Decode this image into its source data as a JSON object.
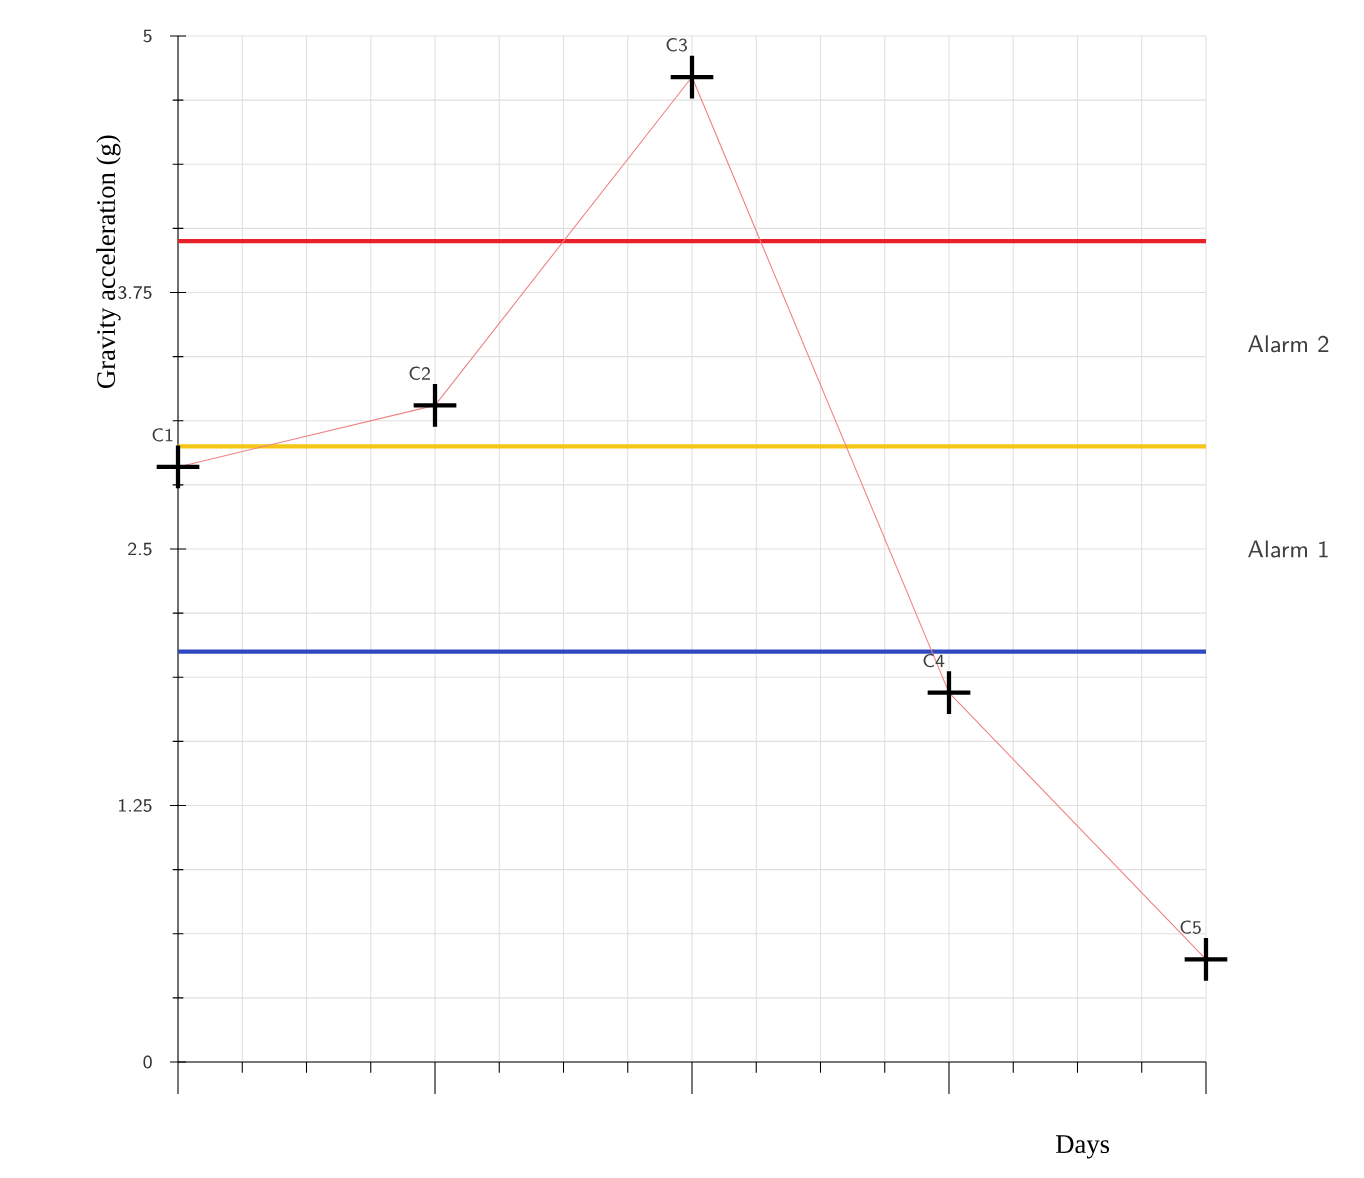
{
  "chart_data": {
    "type": "line",
    "xlabel": "Days",
    "ylabel": "Gravity acceleration (g)",
    "categories": [
      null,
      null,
      null,
      null,
      null
    ],
    "series": [
      {
        "color": "#f08080",
        "values": [
          2.9,
          3.2,
          4.8,
          1.8,
          0.5
        ],
        "value_labels": [
          "C1",
          "C2",
          "C3",
          "C4",
          "C5"
        ]
      }
    ],
    "ylim": [
      0,
      5
    ],
    "yticks": [
      0,
      1.25,
      2.5,
      3.75,
      5
    ],
    "tick_labels": "y",
    "grid": true,
    "marker": "cross",
    "ref_lines": [
      {
        "axis": "y",
        "value": 4,
        "color": "#e8202a"
      },
      {
        "axis": "y",
        "value": 3,
        "color": "#f5c518"
      },
      {
        "axis": "y",
        "value": 2,
        "color": "#3048c0"
      }
    ],
    "annotations": [
      "Alarm 2",
      "Alarm 1"
    ]
  }
}
